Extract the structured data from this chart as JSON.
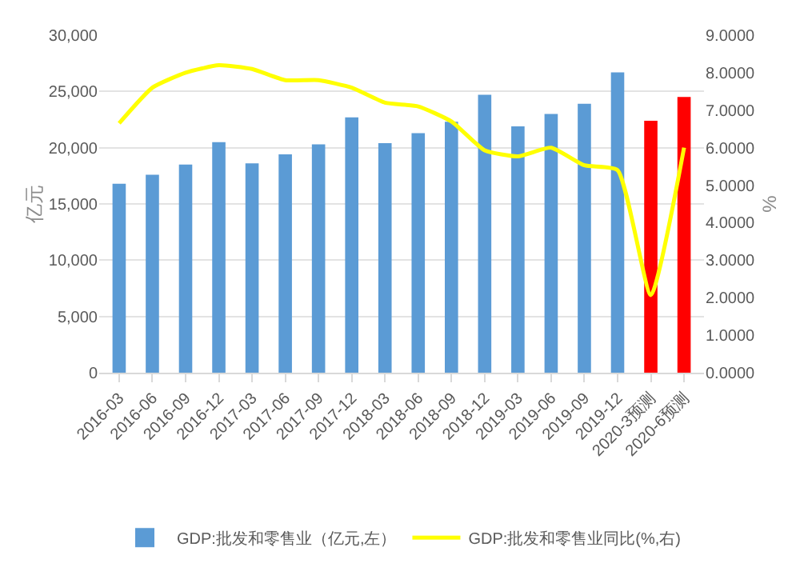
{
  "chart_data": {
    "type": "bar",
    "categories": [
      "2016-03",
      "2016-06",
      "2016-09",
      "2016-12",
      "2017-03",
      "2017-06",
      "2017-09",
      "2017-12",
      "2018-03",
      "2018-06",
      "2018-09",
      "2018-12",
      "2019-03",
      "2019-06",
      "2019-09",
      "2019-12",
      "2020-3预测",
      "2020-6预测"
    ],
    "ylabel": "亿元",
    "y2label": "%",
    "series": [
      {
        "name": "GDP:批发和零售业（亿元,左）",
        "colors": [
          "#5b9bd5",
          "#5b9bd5",
          "#5b9bd5",
          "#5b9bd5",
          "#5b9bd5",
          "#5b9bd5",
          "#5b9bd5",
          "#5b9bd5",
          "#5b9bd5",
          "#5b9bd5",
          "#5b9bd5",
          "#5b9bd5",
          "#5b9bd5",
          "#5b9bd5",
          "#5b9bd5",
          "#5b9bd5",
          "#ff0000",
          "#ff0000"
        ],
        "values": [
          16800,
          17600,
          18500,
          20500,
          18600,
          19400,
          20300,
          22700,
          20400,
          21300,
          22300,
          24700,
          21900,
          23000,
          23900,
          26700,
          22400,
          24500
        ]
      },
      {
        "name": "GDP:批发和零售业同比(%,右)",
        "type": "line",
        "axis": "y2",
        "color": "#ffff00",
        "values": [
          6.65,
          7.6,
          8.0,
          8.2,
          8.1,
          7.8,
          7.8,
          7.6,
          7.2,
          7.1,
          6.7,
          5.93,
          5.77,
          6.0,
          5.53,
          5.4,
          2.07,
          6.0
        ]
      }
    ],
    "ylim": [
      0,
      30000
    ],
    "yticks": [
      {
        "value": 0,
        "label": "0"
      },
      {
        "value": 5000,
        "label": "5,000"
      },
      {
        "value": 10000,
        "label": "10,000"
      },
      {
        "value": 15000,
        "label": "15,000"
      },
      {
        "value": 20000,
        "label": "20,000"
      },
      {
        "value": 25000,
        "label": "25,000"
      },
      {
        "value": 30000,
        "label": "30,000"
      }
    ],
    "y2lim": [
      0,
      9
    ],
    "y2ticks": [
      {
        "value": 0,
        "label": "0.0000"
      },
      {
        "value": 1,
        "label": "1.0000"
      },
      {
        "value": 2,
        "label": "2.0000"
      },
      {
        "value": 3,
        "label": "3.0000"
      },
      {
        "value": 4,
        "label": "4.0000"
      },
      {
        "value": 5,
        "label": "5.0000"
      },
      {
        "value": 6,
        "label": "6.0000"
      },
      {
        "value": 7,
        "label": "7.0000"
      },
      {
        "value": 8,
        "label": "8.0000"
      },
      {
        "value": 9,
        "label": "9.0000"
      }
    ],
    "grid": "y",
    "legend": "bottom",
    "marker": "none",
    "line_style": "solid"
  }
}
